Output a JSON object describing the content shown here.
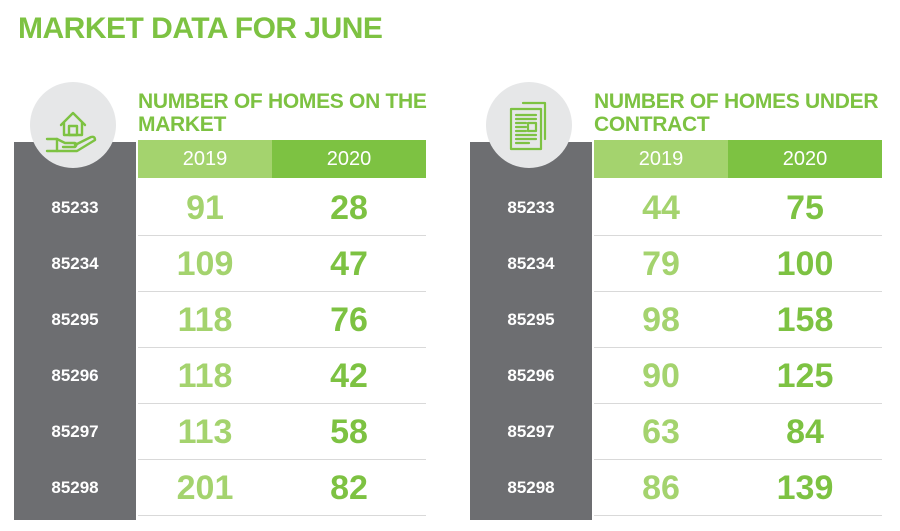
{
  "title": "MARKET DATA FOR JUNE",
  "colors": {
    "green_dark": "#7dc242",
    "green_light": "#a4d36e",
    "gray_column": "#6d6e71",
    "icon_circle": "#e6e7e8"
  },
  "chart_data": [
    {
      "type": "table",
      "title": "NUMBER OF HOMES ON THE MARKET",
      "icon": "house-in-hand-icon",
      "columns": [
        "2019",
        "2020"
      ],
      "rows": [
        "85233",
        "85234",
        "85295",
        "85296",
        "85297",
        "85298"
      ],
      "series": [
        {
          "name": "2019",
          "values": [
            "91",
            "109",
            "118",
            "118",
            "113",
            "201"
          ]
        },
        {
          "name": "2020",
          "values": [
            "28",
            "47",
            "76",
            "42",
            "58",
            "82"
          ]
        }
      ]
    },
    {
      "type": "table",
      "title": "NUMBER OF HOMES UNDER CONTRACT",
      "icon": "contract-documents-icon",
      "columns": [
        "2019",
        "2020"
      ],
      "rows": [
        "85233",
        "85234",
        "85295",
        "85296",
        "85297",
        "85298"
      ],
      "series": [
        {
          "name": "2019",
          "values": [
            "44",
            "79",
            "98",
            "90",
            "63",
            "86"
          ]
        },
        {
          "name": "2020",
          "values": [
            "75",
            "100",
            "158",
            "125",
            "84",
            "139"
          ]
        }
      ]
    }
  ]
}
